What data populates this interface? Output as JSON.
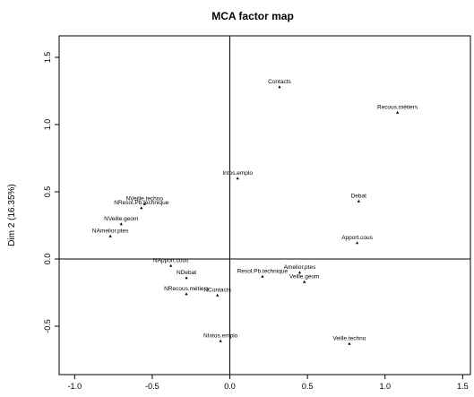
{
  "chart_data": {
    "type": "scatter",
    "title": "MCA factor map",
    "xlabel": "",
    "ylabel": "Dim 2 (16.35%)",
    "xlim": [
      -1.1,
      1.55
    ],
    "ylim": [
      -0.86,
      1.66
    ],
    "x_ticks": [
      -1.0,
      -0.5,
      0.0,
      0.5,
      1.0,
      1.5
    ],
    "x_tick_labels": [
      "-1.0",
      "-0.5",
      "0.0",
      "0.5",
      "1.0",
      "1.5"
    ],
    "y_ticks": [
      -0.5,
      0.0,
      0.5,
      1.0,
      1.5
    ],
    "y_tick_labels": [
      "-0.5",
      "0.0",
      "0.5",
      "1.0",
      "1.5"
    ],
    "reference_lines": {
      "x": 0,
      "y": 0
    },
    "grid": false,
    "points": [
      {
        "label": "Contacts",
        "x": 0.32,
        "y": 1.28
      },
      {
        "label": "Recous.métiers",
        "x": 1.08,
        "y": 1.09
      },
      {
        "label": "Intos.emplo",
        "x": 0.05,
        "y": 0.6
      },
      {
        "label": "Debat",
        "x": 0.83,
        "y": 0.43
      },
      {
        "label": "NVeille.techno",
        "x": -0.55,
        "y": 0.41
      },
      {
        "label": "NResol.Pb.technique",
        "x": -0.57,
        "y": 0.38
      },
      {
        "label": "NVeille.geom",
        "x": -0.7,
        "y": 0.26
      },
      {
        "label": "NAmelior.ptes",
        "x": -0.77,
        "y": 0.17
      },
      {
        "label": "Apport.cous",
        "x": 0.82,
        "y": 0.12
      },
      {
        "label": "NApport.cous",
        "x": -0.38,
        "y": -0.05
      },
      {
        "label": "NDebat",
        "x": -0.28,
        "y": -0.14
      },
      {
        "label": "Resol.Pb.technique",
        "x": 0.21,
        "y": -0.13
      },
      {
        "label": "Amelior.ptes",
        "x": 0.45,
        "y": -0.1
      },
      {
        "label": "Veille.geom",
        "x": 0.48,
        "y": -0.17
      },
      {
        "label": "NRecous.métiers",
        "x": -0.28,
        "y": -0.26
      },
      {
        "label": "NContacts",
        "x": -0.08,
        "y": -0.27
      },
      {
        "label": "NIntos.emplo",
        "x": -0.06,
        "y": -0.61
      },
      {
        "label": "Veille.techno",
        "x": 0.77,
        "y": -0.63
      }
    ]
  }
}
